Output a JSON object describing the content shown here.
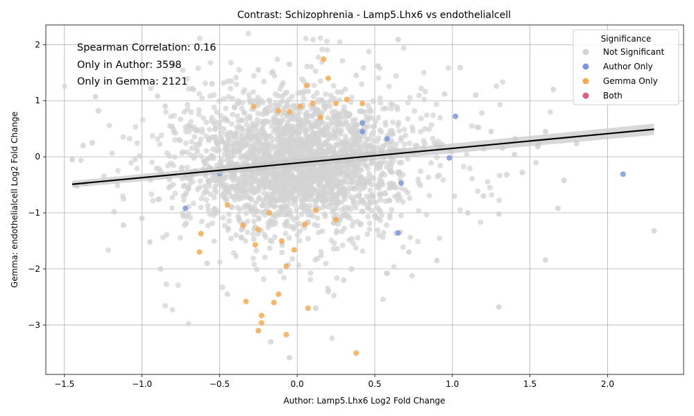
{
  "chart_data": {
    "type": "scatter",
    "title": "Contrast: Schizophrenia - Lamp5.Lhx6 vs endothelialcell",
    "xlabel": "Author: Lamp5.Lhx6 Log2 Fold Change",
    "ylabel": "Gemma: endothelialcell Log2 Fold Change",
    "xlim": [
      -1.62,
      2.49
    ],
    "ylim": [
      -3.88,
      2.35
    ],
    "x_ticks": [
      -1.5,
      -1.0,
      -0.5,
      0.0,
      0.5,
      1.0,
      1.5,
      2.0
    ],
    "x_tick_labels": [
      "−1.5",
      "−1.0",
      "−0.5",
      "0.0",
      "0.5",
      "1.0",
      "1.5",
      "2.0"
    ],
    "y_ticks": [
      -3,
      -2,
      -1,
      0,
      1,
      2
    ],
    "y_tick_labels": [
      "−3",
      "−2",
      "−1",
      "0",
      "1",
      "2"
    ],
    "grid": true,
    "annotations": [
      "Spearman Correlation: 0.16",
      "Only in Author: 3598",
      "Only in Gemma: 2121"
    ],
    "legend": {
      "title": "Significance",
      "placement": "top-right",
      "entries": [
        {
          "label": "Not Significant",
          "color": "#d3d3d3"
        },
        {
          "label": "Author Only",
          "color": "#7b96db"
        },
        {
          "label": "Gemma Only",
          "color": "#f5aa4e"
        },
        {
          "label": "Both",
          "color": "#dd5c78"
        }
      ]
    },
    "regression": {
      "x": [
        -1.45,
        2.3
      ],
      "y": [
        -0.49,
        0.49
      ],
      "band_half_width": [
        0.06,
        0.1
      ]
    },
    "series": [
      {
        "name": "Author Only",
        "color": "#7b96db",
        "points": [
          [
            1.02,
            0.72
          ],
          [
            2.1,
            -0.31
          ],
          [
            0.42,
            0.6
          ],
          [
            0.58,
            0.32
          ],
          [
            0.65,
            -1.36
          ],
          [
            -0.72,
            -0.92
          ],
          [
            0.98,
            -0.02
          ],
          [
            0.67,
            -0.47
          ],
          [
            -0.5,
            -0.3
          ],
          [
            0.42,
            0.45
          ]
        ]
      },
      {
        "name": "Gemma Only",
        "color": "#f5aa4e",
        "points": [
          [
            0.17,
            1.74
          ],
          [
            0.2,
            1.4
          ],
          [
            0.06,
            1.27
          ],
          [
            -0.28,
            0.9
          ],
          [
            -0.12,
            0.82
          ],
          [
            0.42,
            0.95
          ],
          [
            0.25,
            0.95
          ],
          [
            -0.62,
            -1.37
          ],
          [
            -0.63,
            -1.7
          ],
          [
            -0.45,
            -0.86
          ],
          [
            -0.12,
            -2.45
          ],
          [
            -0.15,
            -2.6
          ],
          [
            -0.33,
            -2.58
          ],
          [
            -0.23,
            -2.83
          ],
          [
            -0.23,
            -2.96
          ],
          [
            -0.25,
            -3.1
          ],
          [
            -0.07,
            -3.17
          ],
          [
            0.38,
            -3.5
          ],
          [
            0.07,
            -2.7
          ],
          [
            -0.07,
            -1.95
          ],
          [
            -0.02,
            -1.66
          ],
          [
            0.25,
            -1.12
          ],
          [
            0.05,
            -1.2
          ],
          [
            -0.25,
            -1.3
          ],
          [
            -0.27,
            -1.57
          ],
          [
            0.1,
            0.95
          ],
          [
            -0.05,
            0.8
          ],
          [
            0.15,
            0.7
          ],
          [
            -0.18,
            -1.0
          ],
          [
            0.02,
            0.9
          ],
          [
            -0.35,
            -1.22
          ],
          [
            0.32,
            1.02
          ],
          [
            -0.1,
            -1.5
          ],
          [
            0.12,
            -0.95
          ]
        ]
      },
      {
        "name": "Both",
        "color": "#dd5c78",
        "points": []
      }
    ],
    "not_significant": {
      "name": "Not Significant",
      "color": "#d3d3d3",
      "count": 2600,
      "seed": 7,
      "x_center": 0.0,
      "x_spread": 0.34,
      "y_center": -0.12,
      "y_spread": 0.56,
      "outliers": [
        [
          -1.45,
          -0.05
        ],
        [
          -1.42,
          -0.52
        ],
        [
          -1.36,
          -0.48
        ],
        [
          -1.3,
          1.07
        ],
        [
          -1.28,
          0.82
        ],
        [
          -1.38,
          0.2
        ],
        [
          -1.32,
          0.25
        ],
        [
          -1.12,
          -1.22
        ],
        [
          -1.18,
          -0.98
        ],
        [
          -1.0,
          -1.1
        ],
        [
          -0.88,
          -2.0
        ],
        [
          -0.9,
          1.08
        ],
        [
          -0.85,
          0.9
        ],
        [
          0.65,
          2.09
        ],
        [
          1.05,
          1.59
        ],
        [
          1.65,
          1.2
        ],
        [
          2.3,
          -1.32
        ],
        [
          1.3,
          -2.68
        ],
        [
          1.6,
          -1.84
        ],
        [
          0.9,
          -1.85
        ],
        [
          1.72,
          -0.42
        ],
        [
          1.8,
          0.24
        ],
        [
          1.68,
          -0.92
        ],
        [
          1.55,
          0.18
        ],
        [
          1.6,
          0.45
        ],
        [
          1.45,
          -0.28
        ],
        [
          1.4,
          0.04
        ],
        [
          1.25,
          0.45
        ],
        [
          1.35,
          -0.32
        ],
        [
          1.2,
          -0.7
        ],
        [
          -0.05,
          -3.58
        ],
        [
          -0.17,
          -3.3
        ],
        [
          -0.45,
          -2.45
        ],
        [
          0.12,
          -2.7
        ],
        [
          0.2,
          -2.4
        ],
        [
          0.35,
          -2.0
        ],
        [
          -0.55,
          1.3
        ],
        [
          -0.25,
          1.55
        ],
        [
          0.38,
          1.45
        ],
        [
          0.52,
          1.62
        ],
        [
          -0.05,
          1.65
        ],
        [
          1.15,
          1.1
        ],
        [
          0.95,
          1.12
        ],
        [
          -0.95,
          -1.52
        ],
        [
          -0.58,
          -1.9
        ],
        [
          0.72,
          -1.7
        ],
        [
          0.58,
          -2.08
        ],
        [
          0.3,
          -2.2
        ],
        [
          1.1,
          -1.0
        ],
        [
          1.3,
          -1.02
        ]
      ]
    }
  }
}
